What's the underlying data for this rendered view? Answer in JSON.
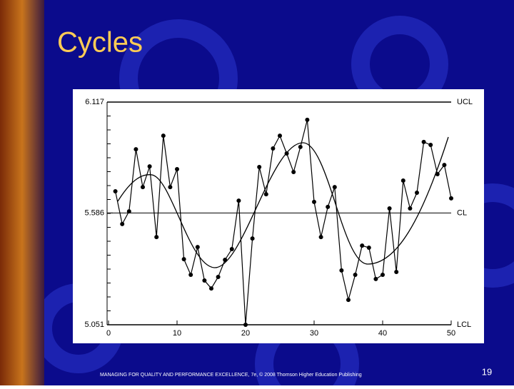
{
  "title": "Cycles",
  "footer": "MANAGING FOR QUALITY AND PERFORMANCE EXCELLENCE, 7e, © 2008 Thomson Higher Education Publishing",
  "page_number": "19",
  "chart_data": {
    "type": "line",
    "color": "#000000",
    "x": [
      1,
      2,
      3,
      4,
      5,
      6,
      7,
      8,
      9,
      10,
      11,
      12,
      13,
      14,
      15,
      16,
      17,
      18,
      19,
      20,
      21,
      22,
      23,
      24,
      25,
      26,
      27,
      28,
      29,
      30,
      31,
      32,
      33,
      34,
      35,
      36,
      37,
      38,
      39,
      40,
      41,
      42,
      43,
      44,
      45,
      46,
      47,
      48,
      49,
      50
    ],
    "values": [
      5.69,
      5.533,
      5.594,
      5.891,
      5.71,
      5.809,
      5.471,
      5.956,
      5.71,
      5.796,
      5.365,
      5.29,
      5.423,
      5.263,
      5.225,
      5.28,
      5.362,
      5.413,
      5.645,
      5.051,
      5.464,
      5.806,
      5.676,
      5.895,
      5.956,
      5.871,
      5.782,
      5.902,
      6.032,
      5.639,
      5.471,
      5.615,
      5.71,
      5.311,
      5.17,
      5.29,
      5.43,
      5.42,
      5.27,
      5.29,
      5.608,
      5.304,
      5.741,
      5.608,
      5.683,
      5.926,
      5.912,
      5.772,
      5.816,
      5.656
    ],
    "xlim": [
      0,
      50
    ],
    "xticks": [
      0,
      10,
      20,
      30,
      40,
      50
    ],
    "ylim": [
      5.051,
      6.117
    ],
    "yticks": [
      5.051,
      5.586,
      6.117
    ],
    "control_limits": [
      {
        "label": "UCL",
        "value": 6.117
      },
      {
        "label": "CL",
        "value": 5.586
      },
      {
        "label": "LCL",
        "value": 5.051
      }
    ]
  }
}
